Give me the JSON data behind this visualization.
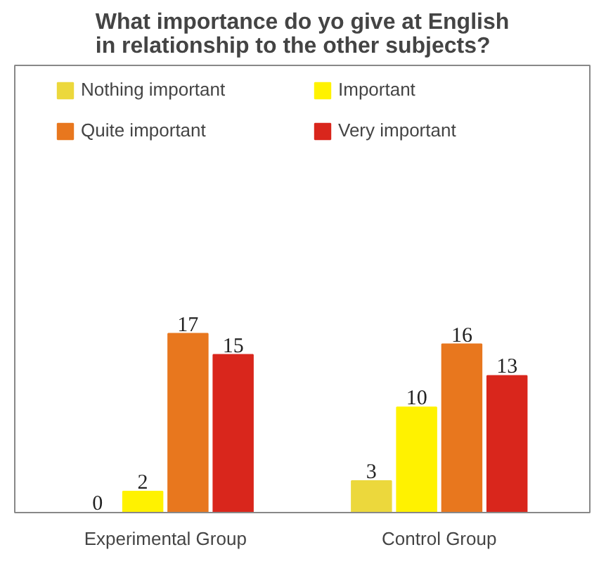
{
  "chart_data": {
    "type": "bar",
    "title": "What importance do yo give at English in relationship to the other subjects?",
    "categories": [
      "Experimental Group",
      "Control Group"
    ],
    "series": [
      {
        "name": "Nothing important",
        "color": "#ecd83c",
        "values": [
          0,
          3
        ]
      },
      {
        "name": "Important",
        "color": "#fff200",
        "values": [
          2,
          10
        ]
      },
      {
        "name": "Quite important",
        "color": "#e8771e",
        "values": [
          17,
          16
        ]
      },
      {
        "name": "Very important",
        "color": "#d9261c",
        "values": [
          15,
          13
        ]
      }
    ],
    "data_labels": true,
    "legend": "top",
    "grid": false
  }
}
